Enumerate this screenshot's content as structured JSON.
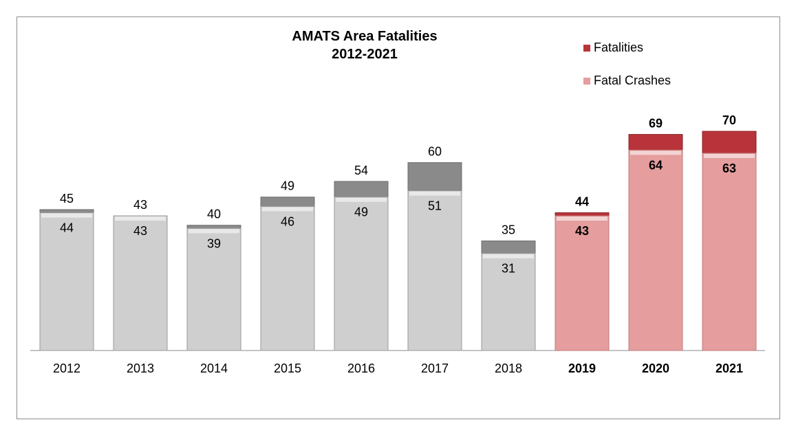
{
  "chart_data": {
    "type": "bar",
    "title_line1": "AMATS Area Fatalities",
    "title_line2": "2012-2021",
    "xlabel": "",
    "ylabel": "",
    "ylim": [
      0,
      70
    ],
    "grid": false,
    "legend_placement": "top-right",
    "categories": [
      "2012",
      "2013",
      "2014",
      "2015",
      "2016",
      "2017",
      "2018",
      "2019",
      "2020",
      "2021"
    ],
    "highlighted_categories": [
      "2019",
      "2020",
      "2021"
    ],
    "series": [
      {
        "name": "Fatalities",
        "values": [
          45,
          43,
          40,
          49,
          54,
          60,
          35,
          44,
          69,
          70
        ]
      },
      {
        "name": "Fatal Crashes",
        "values": [
          44,
          43,
          39,
          46,
          49,
          51,
          31,
          43,
          64,
          63
        ]
      }
    ],
    "colors": {
      "fatalities_gray": "#8a8a8a",
      "crashes_gray": "#cfcfcf",
      "fatalities_red": "#b8343a",
      "crashes_red": "#e59d9d",
      "axis": "#888888"
    }
  }
}
